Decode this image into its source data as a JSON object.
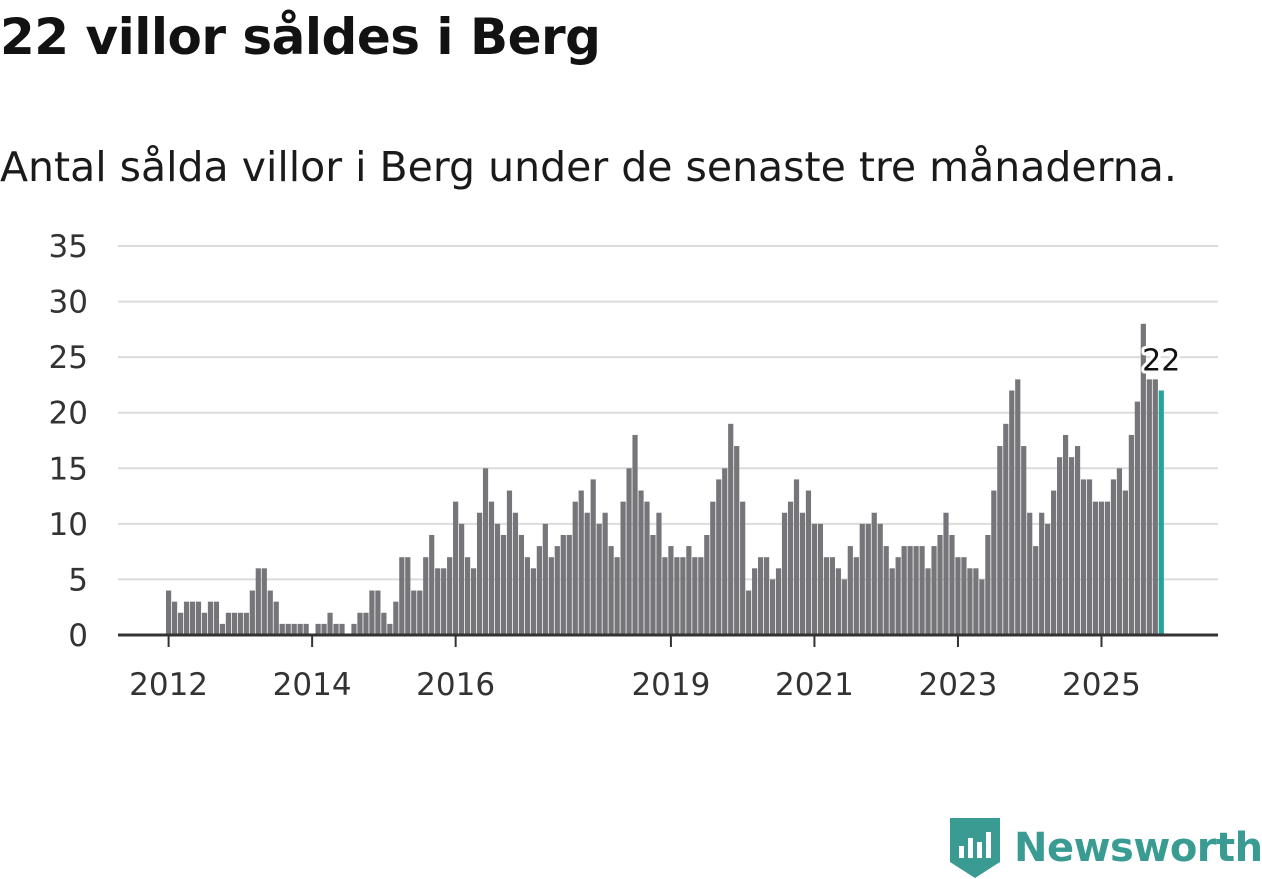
{
  "title": "22 villor såldes i Berg",
  "subtitle": "Antal sålda villor i Berg under de senaste tre månaderna.",
  "brand": {
    "name": "Newsworthy",
    "color": "#3a9b93"
  },
  "colors": {
    "bar": "#75757a",
    "highlight": "#27a39a",
    "grid": "#dcdcdc",
    "axis": "#333333"
  },
  "chart_data": {
    "type": "bar",
    "title": "22 villor såldes i Berg",
    "xlabel": "",
    "ylabel": "",
    "ylim": [
      0,
      35
    ],
    "y_ticks": [
      "0",
      "5",
      "10",
      "15",
      "20",
      "25",
      "30",
      "35"
    ],
    "x_ticks": [
      {
        "label": "2012",
        "index": 0
      },
      {
        "label": "2014",
        "index": 24
      },
      {
        "label": "2016",
        "index": 48
      },
      {
        "label": "2019",
        "index": 84
      },
      {
        "label": "2021",
        "index": 108
      },
      {
        "label": "2023",
        "index": 132
      },
      {
        "label": "2025",
        "index": 156
      }
    ],
    "first_period": "2012-01",
    "values": [
      4,
      3,
      2,
      3,
      3,
      3,
      2,
      3,
      3,
      1,
      2,
      2,
      2,
      2,
      4,
      6,
      6,
      4,
      3,
      1,
      1,
      1,
      1,
      1,
      0,
      1,
      1,
      2,
      1,
      1,
      0,
      1,
      2,
      2,
      4,
      4,
      2,
      1,
      3,
      7,
      7,
      4,
      4,
      7,
      9,
      6,
      6,
      7,
      12,
      10,
      7,
      6,
      11,
      15,
      12,
      10,
      9,
      13,
      11,
      9,
      7,
      6,
      8,
      10,
      7,
      8,
      9,
      9,
      12,
      13,
      11,
      14,
      10,
      11,
      8,
      7,
      12,
      15,
      18,
      13,
      12,
      9,
      11,
      7,
      8,
      7,
      7,
      8,
      7,
      7,
      9,
      12,
      14,
      15,
      19,
      17,
      12,
      4,
      6,
      7,
      7,
      5,
      6,
      11,
      12,
      14,
      11,
      13,
      10,
      10,
      7,
      7,
      6,
      5,
      8,
      7,
      10,
      10,
      11,
      10,
      8,
      6,
      7,
      8,
      8,
      8,
      8,
      6,
      8,
      9,
      11,
      9,
      7,
      7,
      6,
      6,
      5,
      9,
      13,
      17,
      19,
      22,
      23,
      17,
      11,
      8,
      11,
      10,
      13,
      16,
      18,
      16,
      17,
      14,
      14,
      12,
      12,
      12,
      14,
      15,
      13,
      18,
      21,
      28,
      23,
      23,
      22
    ],
    "highlight_index": 166,
    "annotation": {
      "label": "22",
      "index": 166
    }
  }
}
